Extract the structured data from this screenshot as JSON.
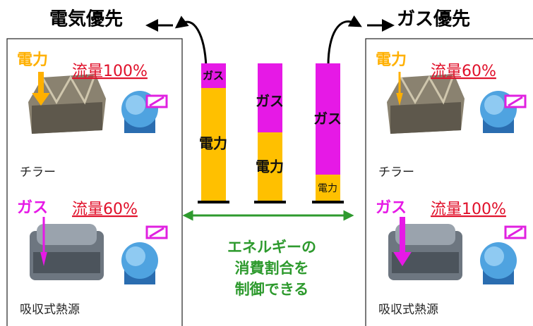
{
  "title_left": "電気優先",
  "title_right": "ガス優先",
  "left_panel": {
    "chiller_source": "電力",
    "chiller_flow": "流量100%",
    "chiller_label": "チラー",
    "absorber_source": "ガス",
    "absorber_flow": "流量60%",
    "absorber_label": "吸収式熱源"
  },
  "right_panel": {
    "chiller_source": "電力",
    "chiller_flow": "流量60%",
    "chiller_label": "チラー",
    "absorber_source": "ガス",
    "absorber_flow": "流量100%",
    "absorber_label": "吸収式熱源"
  },
  "bars": [
    {
      "top": "ガス",
      "bottom": "電力"
    },
    {
      "top": "ガス",
      "bottom": "電力"
    },
    {
      "top": "ガス",
      "bottom": "電力"
    }
  ],
  "caption": [
    "エネルギーの",
    "消費割合を",
    "制御できる"
  ]
}
